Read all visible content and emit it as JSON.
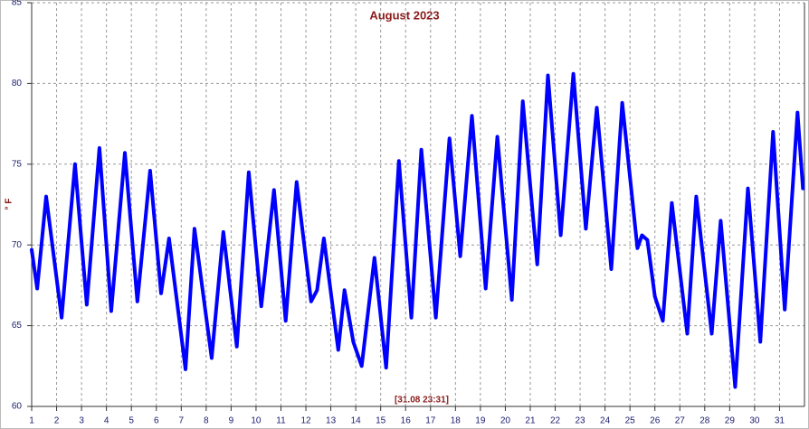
{
  "chart_data": {
    "type": "line",
    "title": "August 2023",
    "y_label": "° F",
    "annotation": "[31.08 23:31]",
    "x": [
      1.0,
      1.22,
      1.58,
      2.2,
      2.74,
      3.21,
      3.72,
      4.19,
      4.74,
      5.24,
      5.75,
      6.19,
      6.51,
      7.17,
      7.53,
      8.22,
      8.69,
      9.23,
      9.71,
      10.21,
      10.72,
      11.19,
      11.63,
      12.21,
      12.45,
      12.72,
      13.3,
      13.55,
      13.9,
      14.24,
      14.75,
      15.22,
      15.73,
      16.23,
      16.63,
      17.21,
      17.76,
      18.19,
      18.66,
      19.21,
      19.68,
      20.26,
      20.7,
      21.28,
      21.71,
      22.22,
      22.73,
      23.23,
      23.67,
      24.25,
      24.69,
      25.3,
      25.48,
      25.7,
      26.0,
      26.32,
      26.68,
      27.3,
      27.66,
      28.28,
      28.64,
      29.22,
      29.73,
      30.23,
      30.74,
      31.21,
      31.72,
      31.94
    ],
    "values": [
      69.7,
      67.3,
      73.0,
      65.5,
      75.0,
      66.3,
      76.0,
      65.9,
      75.7,
      66.5,
      74.6,
      67.0,
      70.4,
      62.3,
      71.0,
      63.0,
      70.8,
      63.7,
      74.5,
      66.2,
      73.4,
      65.3,
      73.9,
      66.5,
      67.2,
      70.4,
      63.5,
      67.2,
      64.0,
      62.5,
      69.2,
      62.4,
      75.2,
      65.5,
      75.9,
      65.5,
      76.6,
      69.3,
      78.0,
      67.3,
      76.7,
      66.6,
      78.9,
      68.8,
      80.5,
      70.6,
      80.6,
      71.0,
      78.5,
      68.5,
      78.8,
      69.8,
      70.6,
      70.3,
      66.8,
      65.3,
      72.6,
      64.5,
      73.0,
      64.5,
      71.5,
      61.2,
      73.5,
      64.0,
      77.0,
      66.0,
      78.2,
      73.5
    ],
    "color": "#0000ff",
    "xlim": [
      1,
      32
    ],
    "xticks": [
      1,
      2,
      3,
      4,
      5,
      6,
      7,
      8,
      9,
      10,
      11,
      12,
      13,
      14,
      15,
      16,
      17,
      18,
      19,
      20,
      21,
      22,
      23,
      24,
      25,
      26,
      27,
      28,
      29,
      30,
      31
    ],
    "ylim": [
      60,
      85
    ],
    "yticks": [
      60,
      65,
      70,
      75,
      80,
      85
    ],
    "grid": true
  }
}
